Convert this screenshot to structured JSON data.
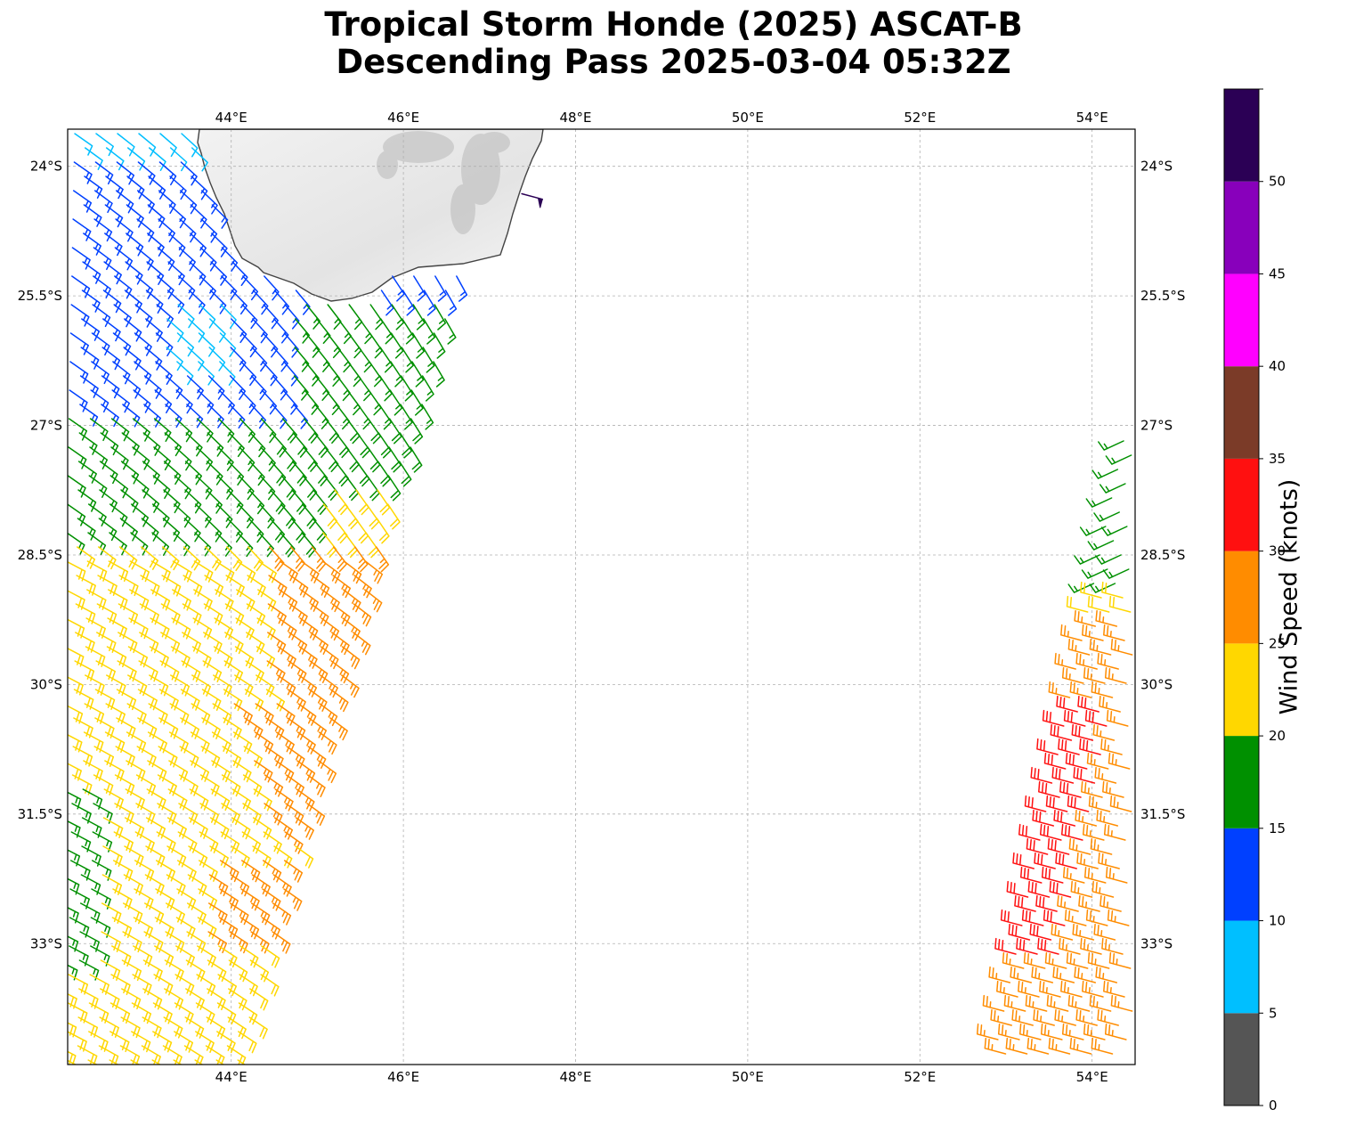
{
  "title_line1": "Tropical Storm Honde (2025) ASCAT-B",
  "title_line2": "Descending Pass 2025-03-04 05:32Z",
  "map": {
    "lon_range": [
      42.1,
      54.5
    ],
    "lat_range": [
      -34.4,
      -23.57
    ],
    "lon_ticks": [
      "44°E",
      "46°E",
      "48°E",
      "50°E",
      "52°E",
      "54°E"
    ],
    "lon_tick_values": [
      44,
      46,
      48,
      50,
      52,
      54
    ],
    "lat_ticks": [
      "24°S",
      "25.5°S",
      "27°S",
      "28.5°S",
      "30°S",
      "31.5°S",
      "33°S"
    ],
    "lat_tick_values": [
      -24,
      -25.5,
      -27,
      -28.5,
      -30,
      -31.5,
      -33
    ],
    "grid": true,
    "land_name": "",
    "sensor": "ASCAT-B"
  },
  "colorbar": {
    "label": "Wind Speed (knots)",
    "tick_labels": [
      "0",
      "5",
      "10",
      "15",
      "20",
      "25",
      "30",
      "35",
      "40",
      "45",
      "50"
    ],
    "levels": [
      0,
      5,
      10,
      15,
      20,
      25,
      30,
      35,
      40,
      45,
      50,
      55
    ],
    "colors": [
      "#555555",
      "#00bfff",
      "#0040ff",
      "#009000",
      "#ffd700",
      "#ff8c00",
      "#ff1010",
      "#7b3b28",
      "#ff00ff",
      "#8800bb",
      "#2b0055"
    ]
  },
  "wind_swaths": [
    {
      "name": "western-swath",
      "west_edge_lon": [
        42.1,
        42.1
      ],
      "east_edge_lon": [
        47.2,
        44.6
      ],
      "lat_span": [
        -23.6,
        -34.4
      ],
      "speed_band_kt": "5-30"
    },
    {
      "name": "eastern-swath",
      "west_edge_lon": [
        54.5,
        52.9
      ],
      "lat_span": [
        -27.2,
        -34.4
      ],
      "speed_band_kt": "15-35"
    }
  ],
  "isolated_barb": {
    "lon": 47.5,
    "lat": -24.4,
    "speed_kt": 52
  }
}
